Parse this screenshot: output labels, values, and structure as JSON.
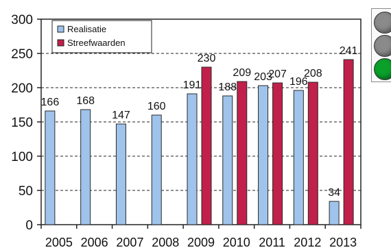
{
  "chart_data": {
    "type": "bar",
    "categories": [
      "2005",
      "2006",
      "2007",
      "2008",
      "2009",
      "2010",
      "2011",
      "2012",
      "2013"
    ],
    "series": [
      {
        "name": "Realisatie",
        "color": "#9fc3ea",
        "values": [
          166,
          168,
          147,
          160,
          191,
          188,
          203,
          196,
          34
        ]
      },
      {
        "name": "Streefwaarden",
        "color": "#c0204a",
        "values": [
          null,
          null,
          null,
          null,
          230,
          209,
          207,
          208,
          241
        ]
      }
    ],
    "ylim": [
      0,
      300
    ],
    "yticks": [
      "0",
      "50",
      "100",
      "150",
      "200",
      "250",
      "300"
    ],
    "grid": "dashed horizontal",
    "legend": "top-left",
    "title": "",
    "xlabel": "",
    "ylabel": ""
  },
  "traffic_light": {
    "lights": [
      {
        "name": "top",
        "color": "#8a8a8a"
      },
      {
        "name": "middle",
        "color": "#8a8a8a"
      },
      {
        "name": "bottom",
        "color": "#0aa02a"
      }
    ]
  }
}
